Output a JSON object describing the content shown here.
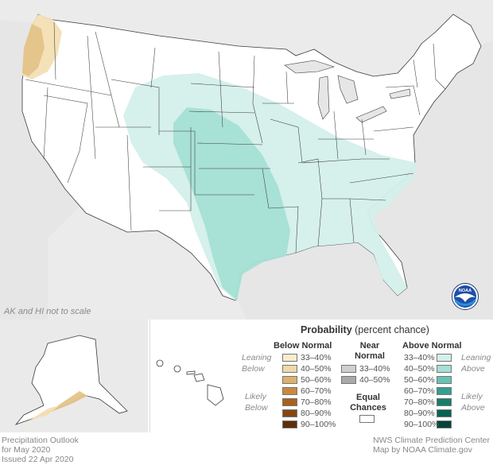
{
  "map_note": "AK and HI not to scale",
  "legend": {
    "title_bold": "Probability",
    "title_rest": "(percent chance)",
    "below_header": "Below Normal",
    "near_header_1": "Near",
    "near_header_2": "Normal",
    "above_header": "Above Normal",
    "leaning_left_1": "Leaning",
    "leaning_left_2": "Below",
    "likely_left_1": "Likely",
    "likely_left_2": "Below",
    "leaning_right_1": "Leaning",
    "leaning_right_2": "Above",
    "likely_right_1": "Likely",
    "likely_right_2": "Above",
    "equal_1": "Equal",
    "equal_2": "Chances",
    "below": [
      {
        "label": "33–40%",
        "color": "#f9eccc"
      },
      {
        "label": "40–50%",
        "color": "#eed9a8"
      },
      {
        "label": "50–60%",
        "color": "#ddb16b"
      },
      {
        "label": "60–70%",
        "color": "#c98a3a"
      },
      {
        "label": "70–80%",
        "color": "#a8621b"
      },
      {
        "label": "80–90%",
        "color": "#86470f"
      },
      {
        "label": "90–100%",
        "color": "#5d2f06"
      }
    ],
    "near": [
      {
        "label": "33–40%",
        "color": "#cfcfcf"
      },
      {
        "label": "40–50%",
        "color": "#a9a9a9"
      }
    ],
    "above": [
      {
        "label": "33–40%",
        "color": "#d4efea"
      },
      {
        "label": "40–50%",
        "color": "#a5dfd5"
      },
      {
        "label": "50–60%",
        "color": "#66c3b3"
      },
      {
        "label": "60–70%",
        "color": "#33a08f"
      },
      {
        "label": "70–80%",
        "color": "#147e6d"
      },
      {
        "label": "80–90%",
        "color": "#086252"
      },
      {
        "label": "90–100%",
        "color": "#03423a"
      }
    ]
  },
  "footer": {
    "left_1": "Precipitation Outlook",
    "left_2": "for May 2020",
    "left_3": "Issued 22 Apr 2020",
    "right_1": "NWS Climate Prediction Center",
    "right_2": "Map by NOAA Climate.gov"
  },
  "logo_text": "NOAA",
  "colors": {
    "water": "#e6e6e6",
    "land": "#ffffff",
    "border": "#3a3a3a",
    "below_lean": "#f4dfb4",
    "below_40": "#e3c388",
    "above_lean": "#d4efea",
    "above_40": "#a5dfd5"
  }
}
